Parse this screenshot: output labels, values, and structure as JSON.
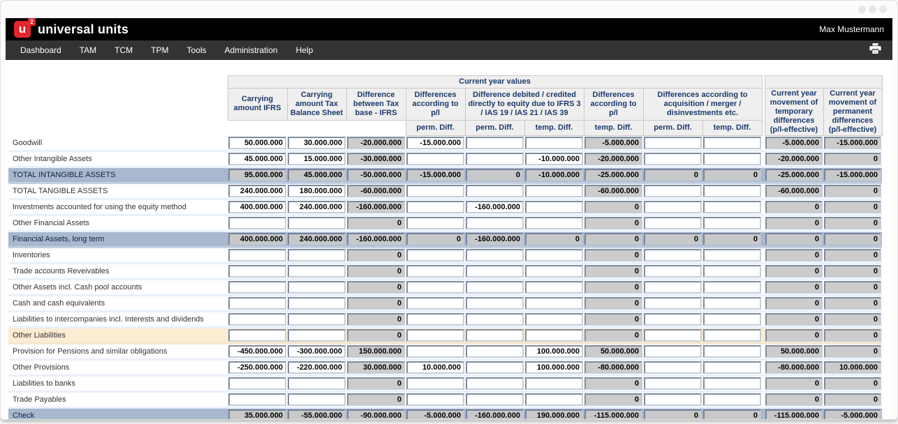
{
  "brand": {
    "logo_letter": "u",
    "logo_sup": "2",
    "name": "universal units"
  },
  "user": {
    "name": "Max Mustermann"
  },
  "nav": {
    "items": [
      "Dashboard",
      "TAM",
      "TCM",
      "TPM",
      "Tools",
      "Administration",
      "Help"
    ]
  },
  "icons": {
    "print": "printer-icon",
    "window_controls": "window-dots"
  },
  "colors": {
    "accent_red": "#e4262c",
    "header_bg": "#000000",
    "nav_bg": "#333333",
    "header_text": "#1b3a6b",
    "total_row_bg": "#a8b8ce",
    "highlight_row_bg": "#fcecd2",
    "readonly_cell_bg": "#cccccc"
  },
  "table": {
    "group_header": "Current year values",
    "main_headers": [
      "Carrying amount IFRS",
      "Carrying amount Tax Balance Sheet",
      "Difference between Tax base - IFRS",
      "Differences according to p/l",
      "Difference debited / credited directly to equity due to IFRS 3 / IAS 19 / IAS 21 / IAS 39",
      "Differences according to p/l",
      "Differences according to acquisition / merger / disinvestments etc."
    ],
    "sub_headers": [
      "perm. Diff.",
      "perm. Diff.",
      "temp. Diff.",
      "temp. Diff.",
      "perm. Diff.",
      "temp. Diff."
    ],
    "movement_headers": [
      "Current year movement of temporary differences (p/l-effective)",
      "Current year movement of permanent differences (p/l-effective)"
    ],
    "rows": [
      {
        "label": "Goodwill",
        "type": "normal",
        "values": [
          "50.000.000",
          "30.000.000",
          "-20.000.000",
          "-15.000.000",
          "",
          "",
          "-5.000.000",
          "",
          "",
          "-5.000.000",
          "-15.000.000"
        ]
      },
      {
        "label": "Other Intangible Assets",
        "type": "normal",
        "values": [
          "45.000.000",
          "15.000.000",
          "-30.000.000",
          "",
          "",
          "-10.000.000",
          "-20.000.000",
          "",
          "",
          "-20.000.000",
          "0"
        ]
      },
      {
        "label": "TOTAL INTANGIBLE ASSETS",
        "type": "total",
        "values": [
          "95.000.000",
          "45.000.000",
          "-50.000.000",
          "-15.000.000",
          "0",
          "-10.000.000",
          "-25.000.000",
          "0",
          "0",
          "-25.000.000",
          "-15.000.000"
        ]
      },
      {
        "label": "TOTAL TANGIBLE ASSETS",
        "type": "normal",
        "values": [
          "240.000.000",
          "180.000.000",
          "-60.000.000",
          "",
          "",
          "",
          "-60.000.000",
          "",
          "",
          "-60.000.000",
          "0"
        ]
      },
      {
        "label": "Investments accounted for using the equity method",
        "type": "normal",
        "values": [
          "400.000.000",
          "240.000.000",
          "-160.000.000",
          "",
          "-160.000.000",
          "",
          "0",
          "",
          "",
          "0",
          "0"
        ]
      },
      {
        "label": "Other Financial Assets",
        "type": "normal",
        "values": [
          "",
          "",
          "0",
          "",
          "",
          "",
          "0",
          "",
          "",
          "0",
          "0"
        ]
      },
      {
        "label": "Financial Assets, long term",
        "type": "total",
        "values": [
          "400.000.000",
          "240.000.000",
          "-160.000.000",
          "0",
          "-160.000.000",
          "0",
          "0",
          "0",
          "0",
          "0",
          "0"
        ]
      },
      {
        "label": "Inventories",
        "type": "normal",
        "values": [
          "",
          "",
          "0",
          "",
          "",
          "",
          "0",
          "",
          "",
          "0",
          "0"
        ]
      },
      {
        "label": "Trade accounts Reveivables",
        "type": "normal",
        "values": [
          "",
          "",
          "0",
          "",
          "",
          "",
          "0",
          "",
          "",
          "0",
          "0"
        ]
      },
      {
        "label": "Other Assets incl. Cash pool accounts",
        "type": "normal",
        "values": [
          "",
          "",
          "0",
          "",
          "",
          "",
          "0",
          "",
          "",
          "0",
          "0"
        ]
      },
      {
        "label": "Cash and cash equivalents",
        "type": "normal",
        "values": [
          "",
          "",
          "0",
          "",
          "",
          "",
          "0",
          "",
          "",
          "0",
          "0"
        ]
      },
      {
        "label": "Liabilities to intercompanies incl. Interests and dividends",
        "type": "normal",
        "values": [
          "",
          "",
          "0",
          "",
          "",
          "",
          "0",
          "",
          "",
          "0",
          "0"
        ]
      },
      {
        "label": "Other Liabilities",
        "type": "highlight",
        "values": [
          "",
          "",
          "0",
          "",
          "",
          "",
          "0",
          "",
          "",
          "0",
          "0"
        ]
      },
      {
        "label": "Provision for Pensions and similar obligations",
        "type": "normal",
        "values": [
          "-450.000.000",
          "-300.000.000",
          "150.000.000",
          "",
          "",
          "100.000.000",
          "50.000.000",
          "",
          "",
          "50.000.000",
          "0"
        ]
      },
      {
        "label": "Other Provisions",
        "type": "normal",
        "values": [
          "-250.000.000",
          "-220.000.000",
          "30.000.000",
          "10.000.000",
          "",
          "100.000.000",
          "-80.000.000",
          "",
          "",
          "-80.000.000",
          "10.000.000"
        ]
      },
      {
        "label": "Liabilities to banks",
        "type": "normal",
        "values": [
          "",
          "",
          "0",
          "",
          "",
          "",
          "0",
          "",
          "",
          "0",
          "0"
        ]
      },
      {
        "label": "Trade Payables",
        "type": "normal",
        "values": [
          "",
          "",
          "0",
          "",
          "",
          "",
          "0",
          "",
          "",
          "0",
          "0"
        ]
      },
      {
        "label": "Check",
        "type": "total",
        "values": [
          "35.000.000",
          "-55.000.000",
          "-90.000.000",
          "-5.000.000",
          "-160.000.000",
          "190.000.000",
          "-115.000.000",
          "0",
          "0",
          "-115.000.000",
          "-5.000.000"
        ]
      }
    ]
  }
}
